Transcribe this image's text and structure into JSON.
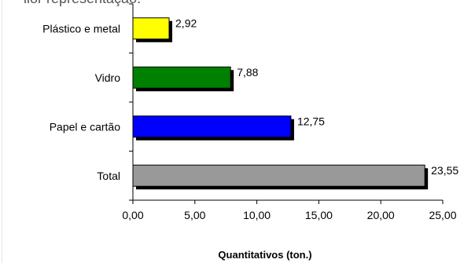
{
  "header_fragment": "ilor representação.",
  "chart_data": {
    "type": "bar",
    "orientation": "horizontal",
    "categories": [
      "Plástico e metal",
      "Vidro",
      "Papel e cartão",
      "Total"
    ],
    "values": [
      2.92,
      7.88,
      12.75,
      23.55
    ],
    "value_labels": [
      "2,92",
      "7,88",
      "12,75",
      "23,55"
    ],
    "colors": [
      "#ffff00",
      "#008000",
      "#0000ff",
      "#999999"
    ],
    "xlabel": "Quantitativos (ton.)",
    "xlim": [
      0,
      25
    ],
    "xticks": [
      0,
      5,
      10,
      15,
      20,
      25
    ],
    "xtick_labels": [
      "0,00",
      "5,00",
      "10,00",
      "15,00",
      "20,00",
      "25,00"
    ],
    "grid": false,
    "legend": "none"
  }
}
